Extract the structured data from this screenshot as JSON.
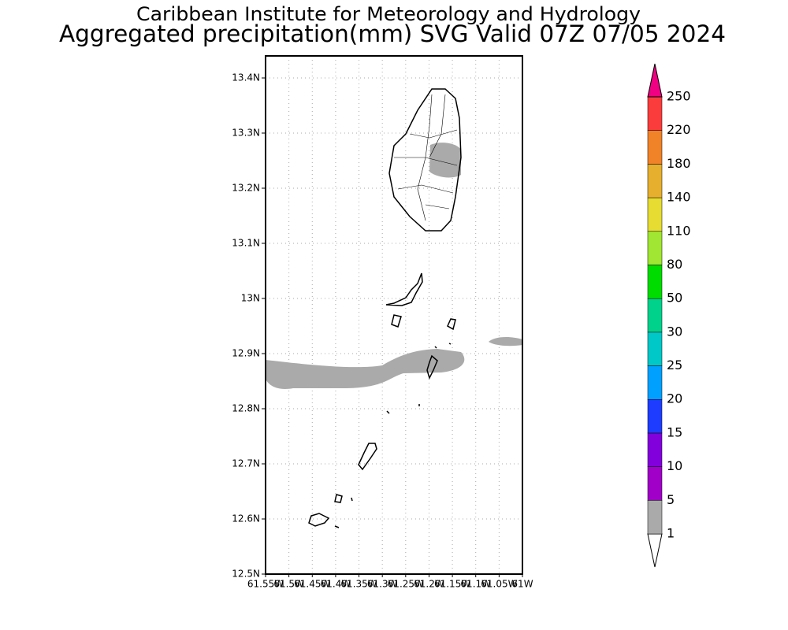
{
  "header": {
    "title": "Caribbean Institute for Meteorology and Hydrology",
    "subtitle": "Aggregated precipitation(mm) SVG Valid 07Z 07/05 2024"
  },
  "map": {
    "xlim": [
      -61.55,
      -61
    ],
    "ylim": [
      12.5,
      13.44
    ],
    "xticks": [
      {
        "value": -61.55,
        "label": "61.55W"
      },
      {
        "value": -61.5,
        "label": "61.5W"
      },
      {
        "value": -61.45,
        "label": "61.45W"
      },
      {
        "value": -61.4,
        "label": "61.4W"
      },
      {
        "value": -61.35,
        "label": "61.35W"
      },
      {
        "value": -61.3,
        "label": "61.3W"
      },
      {
        "value": -61.25,
        "label": "61.25W"
      },
      {
        "value": -61.2,
        "label": "61.2W"
      },
      {
        "value": -61.15,
        "label": "61.15W"
      },
      {
        "value": -61.1,
        "label": "61.1W"
      },
      {
        "value": -61.05,
        "label": "61.05W"
      },
      {
        "value": -61,
        "label": "61W"
      }
    ],
    "yticks": [
      {
        "value": 12.5,
        "label": "12.5N"
      },
      {
        "value": 12.6,
        "label": "12.6N"
      },
      {
        "value": 12.7,
        "label": "12.7N"
      },
      {
        "value": 12.8,
        "label": "12.8N"
      },
      {
        "value": 12.9,
        "label": "12.9N"
      },
      {
        "value": 13,
        "label": "13N"
      },
      {
        "value": 13.1,
        "label": "13.1N"
      },
      {
        "value": 13.2,
        "label": "13.2N"
      },
      {
        "value": 13.3,
        "label": "13.3N"
      },
      {
        "value": 13.4,
        "label": "13.4N"
      }
    ]
  },
  "colorbar": {
    "levels": [
      1,
      5,
      10,
      15,
      20,
      25,
      30,
      50,
      80,
      110,
      140,
      180,
      220,
      250
    ],
    "colors": [
      "#ffffff",
      "#aaaaaa",
      "#a000c8",
      "#8200dc",
      "#1e3cff",
      "#00a0ff",
      "#00c8c8",
      "#00d28c",
      "#00dc00",
      "#a0e632",
      "#e6dc32",
      "#e6af2d",
      "#f08228",
      "#fa3c3c",
      "#f00082"
    ]
  }
}
